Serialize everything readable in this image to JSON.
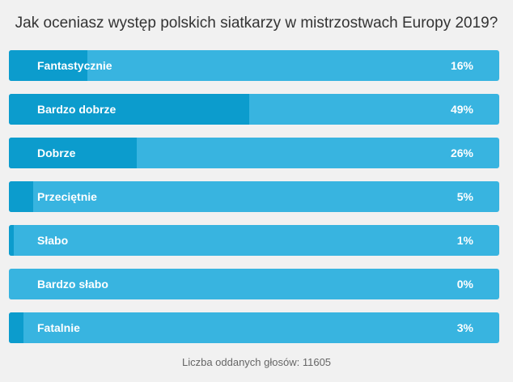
{
  "question": "Jak oceniasz występ polskich siatkarzy w mistrzostwach Europy 2019?",
  "options": [
    {
      "label": "Fantastycznie",
      "percent_label": "16%",
      "percent": 16
    },
    {
      "label": "Bardzo dobrze",
      "percent_label": "49%",
      "percent": 49
    },
    {
      "label": "Dobrze",
      "percent_label": "26%",
      "percent": 26
    },
    {
      "label": "Przeciętnie",
      "percent_label": "5%",
      "percent": 5
    },
    {
      "label": "Słabo",
      "percent_label": "1%",
      "percent": 1
    },
    {
      "label": "Bardzo słabo",
      "percent_label": "0%",
      "percent": 0
    },
    {
      "label": "Fatalnie",
      "percent_label": "3%",
      "percent": 3
    }
  ],
  "footer": "Liczba oddanych głosów: 11605",
  "colors": {
    "fill": "#0c9ccd",
    "bar": "#38b4e0",
    "background": "#f1f1f1"
  }
}
